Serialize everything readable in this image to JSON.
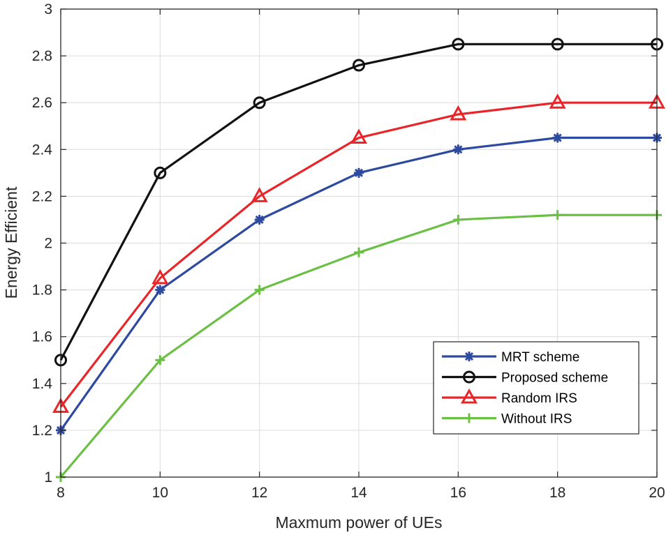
{
  "chart_data": {
    "type": "line",
    "title": "",
    "xlabel": "Maxmum power of UEs",
    "ylabel": "Energy Efficient",
    "x": [
      8,
      10,
      12,
      14,
      16,
      18,
      20
    ],
    "xlim": [
      8,
      20
    ],
    "ylim": [
      1,
      3
    ],
    "xticks": [
      8,
      10,
      12,
      14,
      16,
      18,
      20
    ],
    "yticks": [
      1,
      1.2,
      1.4,
      1.6,
      1.8,
      2,
      2.2,
      2.4,
      2.6,
      2.8,
      3
    ],
    "xtick_labels": [
      "8",
      "10",
      "12",
      "14",
      "16",
      "18",
      "20"
    ],
    "ytick_labels": [
      "1",
      "1.2",
      "1.4",
      "1.6",
      "1.8",
      "2",
      "2.2",
      "2.4",
      "2.6",
      "2.8",
      "3"
    ],
    "grid": true,
    "legend_position": "bottom-right",
    "series": [
      {
        "name": "MRT scheme",
        "color": "#2E4A9E",
        "marker": "asterisk",
        "values": [
          1.2,
          1.8,
          2.1,
          2.3,
          2.4,
          2.45,
          2.45
        ]
      },
      {
        "name": "Proposed scheme",
        "color": "#111111",
        "marker": "circle",
        "values": [
          1.5,
          2.3,
          2.6,
          2.76,
          2.85,
          2.85,
          2.85
        ]
      },
      {
        "name": "Random IRS",
        "color": "#E8262A",
        "marker": "triangle",
        "values": [
          1.3,
          1.85,
          2.2,
          2.45,
          2.55,
          2.6,
          2.6
        ]
      },
      {
        "name": "Without IRS",
        "color": "#6BBF45",
        "marker": "plus",
        "values": [
          1.0,
          1.5,
          1.8,
          1.96,
          2.1,
          2.12,
          2.12
        ]
      }
    ]
  }
}
